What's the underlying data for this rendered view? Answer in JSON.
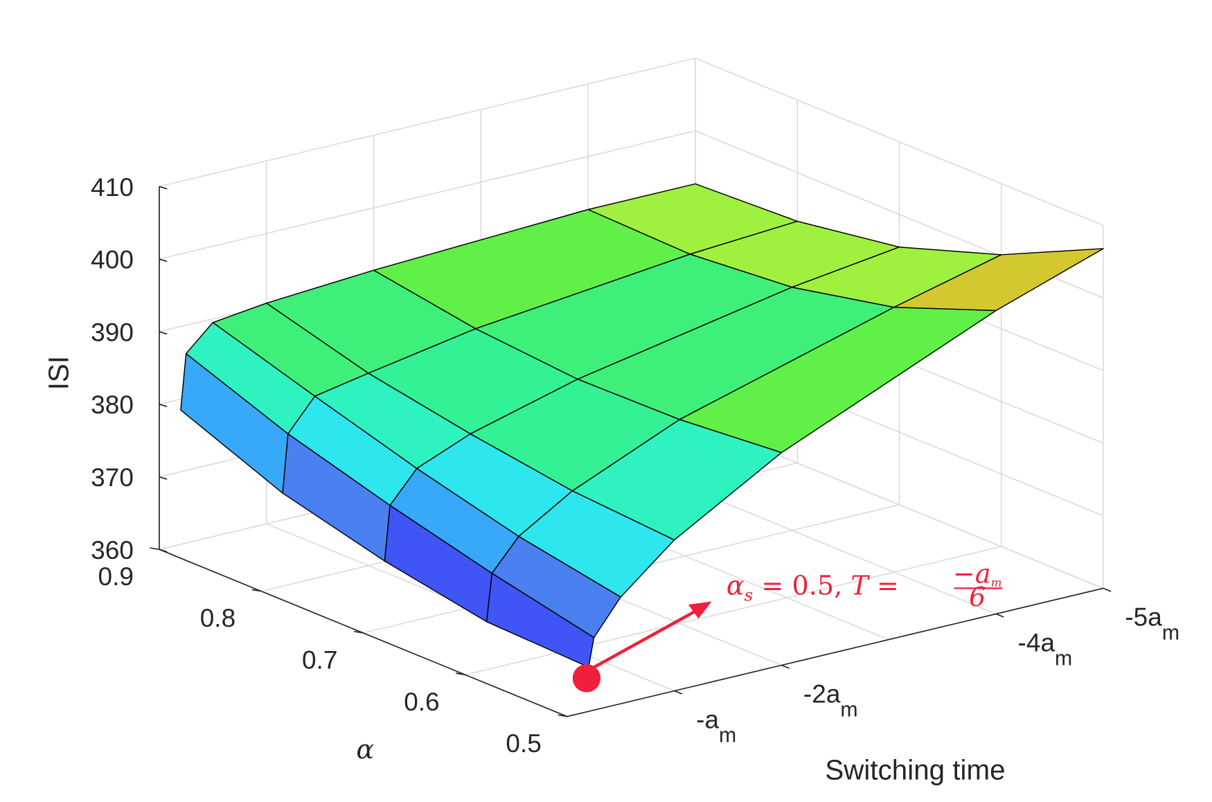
{
  "chart_data": {
    "type": "surface",
    "title": "",
    "xlabel": "Switching time",
    "ylabel": "α",
    "zlabel": "ISI",
    "zlim": [
      360,
      410
    ],
    "xlim_magnitude_am": [
      0,
      5
    ],
    "ylim": [
      0.5,
      0.9
    ],
    "grid": true,
    "z_ticks": [
      360,
      370,
      380,
      390,
      400,
      410
    ],
    "z_tick_labels": [
      "360",
      "370",
      "380",
      "390",
      "400",
      "410"
    ],
    "alpha_ticks": [
      0.5,
      0.6,
      0.7,
      0.8,
      0.9
    ],
    "alpha_tick_labels": [
      "0.5",
      "0.6",
      "0.7",
      "0.8",
      "0.9"
    ],
    "x_ticks_am": [
      1,
      2,
      4,
      5
    ],
    "x_tick_labels": [
      {
        "main": "-a",
        "sub": "m"
      },
      {
        "main": "-2a",
        "sub": "m"
      },
      {
        "main": "-4a",
        "sub": "m"
      },
      {
        "main": "-5a",
        "sub": "m"
      }
    ],
    "x_grid_am": [
      1,
      2,
      3,
      4,
      5
    ],
    "switching_time_am": [
      0.2,
      0.25,
      0.5,
      1,
      2,
      4,
      5
    ],
    "alpha_values": [
      0.5,
      0.6,
      0.7,
      0.8,
      0.9
    ],
    "isi": [
      [
        366.1,
        370.0,
        374.7,
        380.8,
        389.3,
        401.8,
        406.8
      ],
      [
        366.6,
        373.1,
        377.3,
        381.8,
        388.1,
        396.5,
        400.2
      ],
      [
        369.2,
        376.7,
        380.9,
        383.9,
        387.9,
        393.5,
        395.5
      ],
      [
        372.8,
        380.8,
        385.1,
        386.5,
        389.1,
        392.3,
        393.3
      ],
      [
        378.5,
        386.1,
        389.5,
        390.4,
        391.4,
        392.7,
        392.7
      ]
    ],
    "highlight_point": {
      "alpha": 0.5,
      "switching_time_am": 0.1667,
      "color": "#f0203a"
    },
    "annotation": {
      "lhs1": "α",
      "lhs1_sub": "s",
      "eq1": " = 0.5,  ",
      "lhs2": "T",
      "eq2": " = ",
      "num": "−a",
      "num_sub": "m",
      "den": "6"
    },
    "colormap": [
      "#3a3af8",
      "#3f55f5",
      "#4a80f0",
      "#38a8f8",
      "#2ee6ee",
      "#2ef2c0",
      "#33f295",
      "#3ef07a",
      "#60f048",
      "#a0f040",
      "#d4c830",
      "#f8c040"
    ]
  }
}
